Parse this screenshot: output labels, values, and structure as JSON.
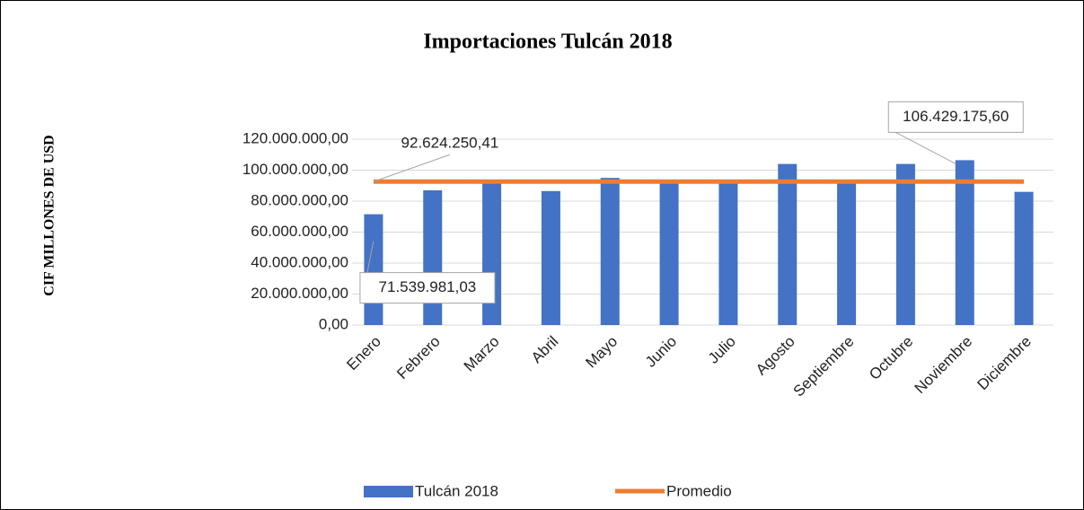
{
  "chart_data": {
    "type": "bar",
    "title": "Importaciones Tulcán 2018",
    "y_axis_label": "CIF MILLONES DE USD",
    "categories": [
      "Enero",
      "Febrero",
      "Marzo",
      "Abril",
      "Mayo",
      "Junio",
      "Julio",
      "Agosto",
      "Septiembre",
      "Octubre",
      "Noviembre",
      "Diciembre"
    ],
    "series": [
      {
        "name": "Tulcán 2018",
        "type": "bar",
        "color": "#4472c4",
        "values": [
          71539981.03,
          87000000,
          92500000,
          86500000,
          95000000,
          93000000,
          92500000,
          104000000,
          93000000,
          104000000,
          106429175.6,
          86000000
        ],
        "value_labels": [
          "71.539.981,03",
          null,
          null,
          null,
          null,
          null,
          null,
          null,
          null,
          null,
          "106.429.175,60",
          null
        ]
      },
      {
        "name": "Promedio",
        "type": "line",
        "color": "#ed7d31",
        "values": [
          92624250.41,
          92624250.41,
          92624250.41,
          92624250.41,
          92624250.41,
          92624250.41,
          92624250.41,
          92624250.41,
          92624250.41,
          92624250.41,
          92624250.41,
          92624250.41
        ],
        "value_labels": [
          "92.624.250,41",
          null,
          null,
          null,
          null,
          null,
          null,
          null,
          null,
          null,
          null,
          null
        ]
      }
    ],
    "ylim": [
      0,
      120000000
    ],
    "yticks": [
      {
        "value": 0,
        "label": "0,00"
      },
      {
        "value": 20000000,
        "label": "20.000.000,00"
      },
      {
        "value": 40000000,
        "label": "40.000.000,00"
      },
      {
        "value": 60000000,
        "label": "60.000.000,00"
      },
      {
        "value": 80000000,
        "label": "80.000.000,00"
      },
      {
        "value": 100000000,
        "label": "100.000.000,00"
      },
      {
        "value": 120000000,
        "label": "120.000.000,00"
      }
    ],
    "grid": true,
    "legend": "bottom"
  }
}
